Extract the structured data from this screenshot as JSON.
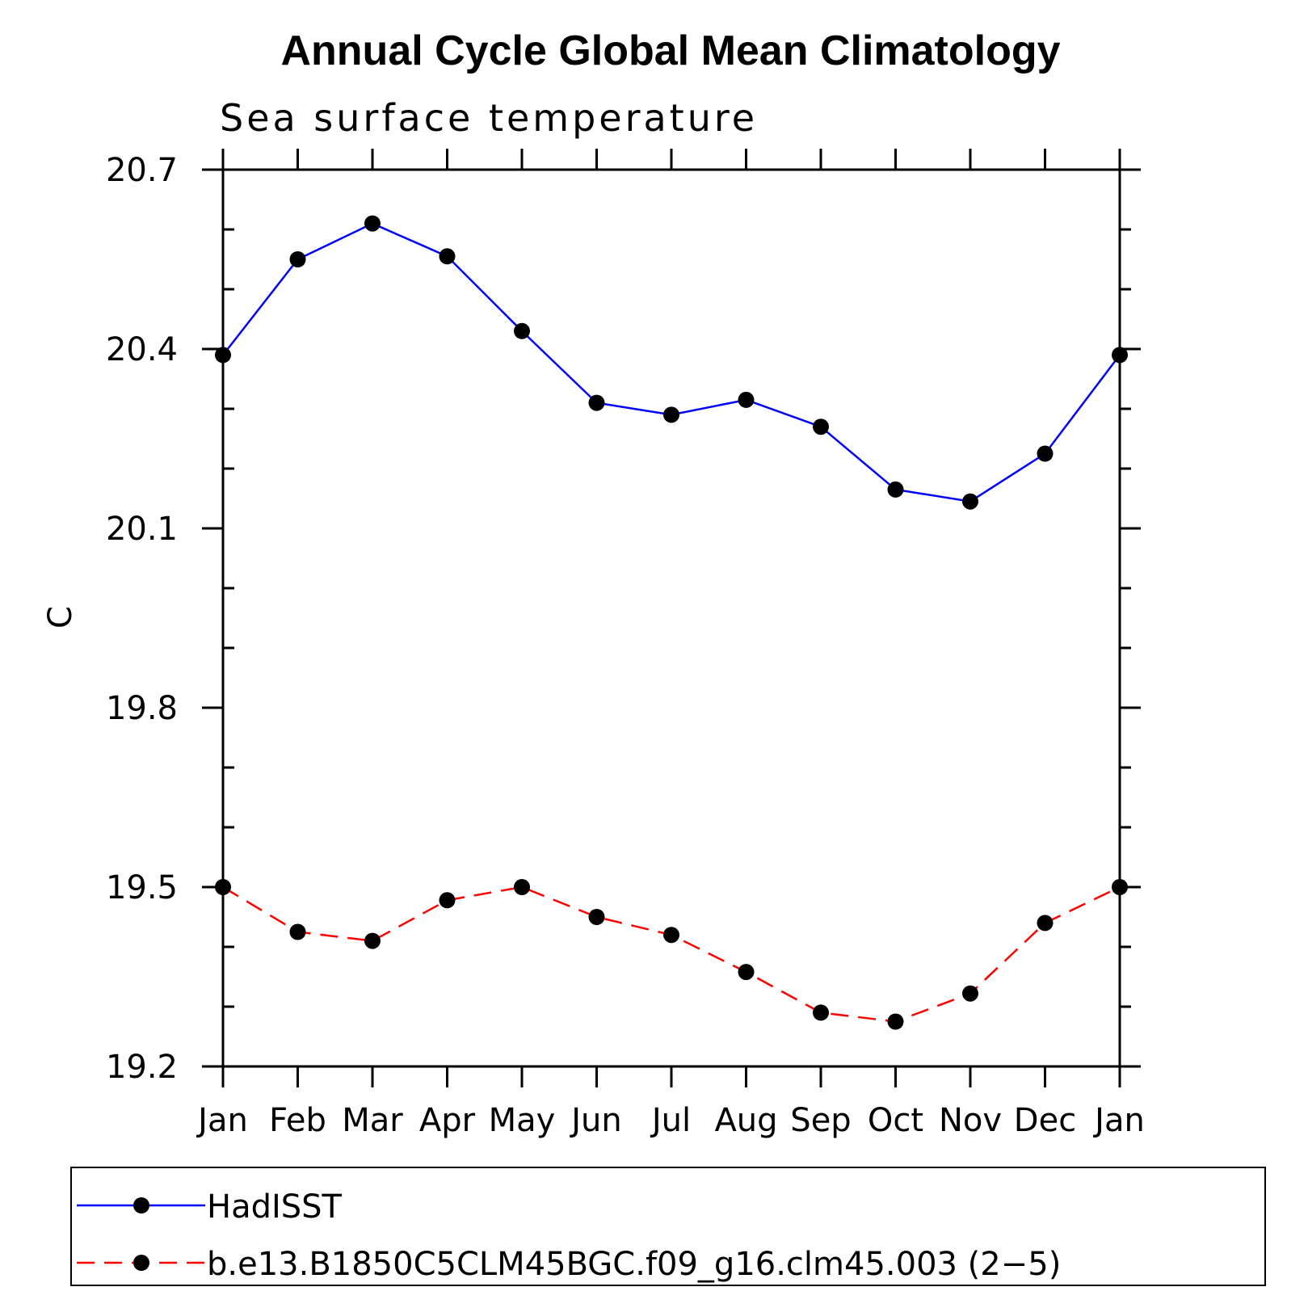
{
  "chart_data": {
    "type": "line",
    "title": "Annual Cycle Global Mean Climatology",
    "subtitle": "Sea surface temperature",
    "xlabel": "",
    "ylabel": "C",
    "categories": [
      "Jan",
      "Feb",
      "Mar",
      "Apr",
      "May",
      "Jun",
      "Jul",
      "Aug",
      "Sep",
      "Oct",
      "Nov",
      "Dec",
      "Jan"
    ],
    "ylim": [
      19.2,
      20.7
    ],
    "yticks": [
      "20.7",
      "20.4",
      "20.1",
      "19.8",
      "19.5",
      "19.2"
    ],
    "ytick_values": [
      20.7,
      20.4,
      20.1,
      19.8,
      19.5,
      19.2
    ],
    "y_minor_step": 0.1,
    "grid": false,
    "legend_position": "bottom",
    "series": [
      {
        "name": "HadISST",
        "color": "#0000ff",
        "line_style": "solid",
        "marker": "filled-circle",
        "values": [
          20.39,
          20.55,
          20.61,
          20.555,
          20.43,
          20.31,
          20.29,
          20.315,
          20.27,
          20.165,
          20.145,
          20.225,
          20.39
        ]
      },
      {
        "name": "b.e13.B1850C5CLM45BGC.f09_g16.clm45.003 (2−5)",
        "color": "#ff0000",
        "line_style": "dashed",
        "marker": "filled-circle",
        "values": [
          19.5,
          19.425,
          19.41,
          19.478,
          19.5,
          19.45,
          19.42,
          19.358,
          19.29,
          19.275,
          19.322,
          19.44,
          19.5
        ]
      }
    ]
  }
}
